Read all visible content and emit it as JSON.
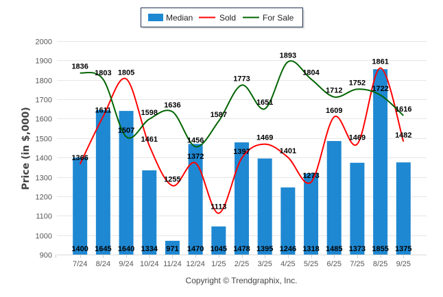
{
  "chart_data": {
    "type": "bar",
    "title": "",
    "xlabel": "",
    "ylabel": "Price (in $,000)",
    "ylim": [
      900,
      2000
    ],
    "yticks": [
      900,
      1000,
      1100,
      1200,
      1300,
      1400,
      1500,
      1600,
      1700,
      1800,
      1900,
      2000
    ],
    "grid": true,
    "legend_position": "top-center",
    "categories": [
      "7/24",
      "8/24",
      "9/24",
      "10/24",
      "11/24",
      "12/24",
      "1/25",
      "2/25",
      "3/25",
      "4/25",
      "5/25",
      "6/25",
      "7/25",
      "8/25",
      "9/25"
    ],
    "series": [
      {
        "name": "Median",
        "kind": "bar",
        "color": "#1f88d2",
        "values": [
          1400,
          1645,
          1640,
          1334,
          971,
          1470,
          1045,
          1478,
          1395,
          1246,
          1318,
          1485,
          1373,
          1855,
          1375
        ]
      },
      {
        "name": "Sold",
        "kind": "line",
        "color": "#ff0000",
        "values": [
          1366,
          1611,
          1805,
          1461,
          1255,
          1372,
          1113,
          1397,
          1469,
          1401,
          1273,
          1609,
          1469,
          1861,
          1482
        ]
      },
      {
        "name": "For Sale",
        "kind": "line",
        "color": "#006400",
        "values": [
          1836,
          1803,
          1507,
          1598,
          1636,
          1456,
          1587,
          1773,
          1651,
          1893,
          1804,
          1712,
          1752,
          1722,
          1616
        ]
      }
    ]
  },
  "footer": {
    "copyright": "Copyright © Trendgraphix, Inc."
  }
}
